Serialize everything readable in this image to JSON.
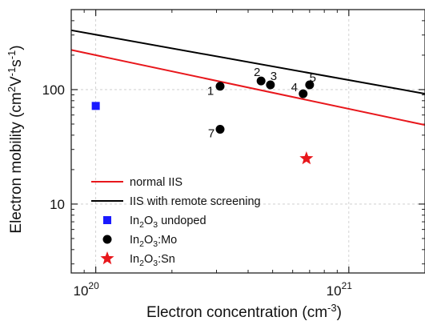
{
  "chart_data": {
    "type": "scatter",
    "title": "",
    "xlabel": "Electron concentration (cm",
    "xlabel_sup": "-3",
    "xlabel_tail": ")",
    "ylabel": "Electron mobility (cm",
    "ylabel_sup1": "2",
    "ylabel_mid1": "V",
    "ylabel_sup2": "-1",
    "ylabel_mid2": "s",
    "ylabel_sup3": "-1",
    "ylabel_tail": ")",
    "x_scale": "log",
    "y_scale": "log",
    "xlim": [
      8e+19,
      2e+21
    ],
    "ylim": [
      2.5,
      500
    ],
    "grid": true,
    "legend_position": "lower-left",
    "x_ticks": [
      {
        "value": 1e+20,
        "base": "10",
        "exp": "20"
      },
      {
        "value": 1e+21,
        "base": "10",
        "exp": "21"
      }
    ],
    "y_ticks": [
      {
        "value": 10,
        "label": "10"
      },
      {
        "value": 100,
        "label": "100"
      }
    ],
    "series": [
      {
        "name": "normal IIS",
        "kind": "line",
        "color": "#e8171c",
        "x": [
          8e+19,
          2e+21
        ],
        "y": [
          222,
          49
        ]
      },
      {
        "name": "IIS with remote screening",
        "kind": "line",
        "color": "#000000",
        "x": [
          8e+19,
          2e+21
        ],
        "y": [
          330,
          92
        ]
      },
      {
        "name_parts": [
          "In",
          "2",
          "O",
          "3",
          " undoped"
        ],
        "kind": "marker",
        "marker": "square",
        "color": "#1a1aff",
        "x": [
          1e+20
        ],
        "y": [
          72
        ]
      },
      {
        "name_parts": [
          "In",
          "2",
          "O",
          "3",
          ":Mo"
        ],
        "kind": "marker",
        "marker": "circle",
        "color": "#000000",
        "x": [
          3.1e+20,
          4.5e+20,
          4.9e+20,
          6.6e+20,
          7e+20,
          3.1e+20
        ],
        "y": [
          107,
          119,
          110,
          92,
          110,
          45
        ],
        "point_labels": [
          "1",
          "2",
          "3",
          "4",
          "5",
          "7"
        ]
      },
      {
        "name_parts": [
          "In",
          "2",
          "O",
          "3",
          ":Sn"
        ],
        "kind": "marker",
        "marker": "star",
        "color": "#e8171c",
        "x": [
          6.8e+20
        ],
        "y": [
          25
        ]
      }
    ]
  }
}
